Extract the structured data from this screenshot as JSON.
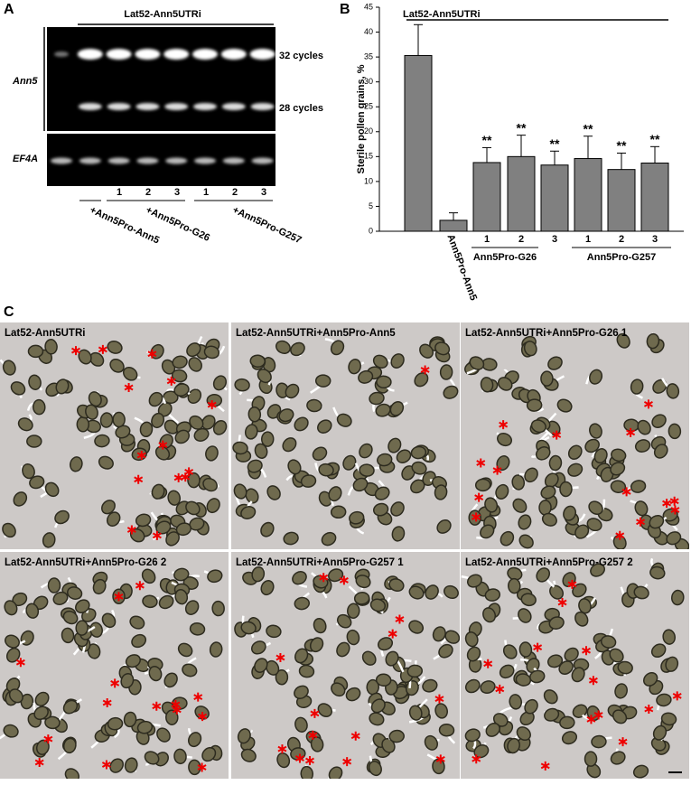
{
  "panel_labels": [
    "A",
    "B",
    "C"
  ],
  "gel": {
    "title": "Lat52-Ann5UTRi",
    "row_labels": [
      "Ann5",
      "EF4A"
    ],
    "cycle_labels": [
      "32 cycles",
      "28 cycles"
    ],
    "lane_numbers": [
      "1",
      "2",
      "3",
      "1",
      "2",
      "3"
    ],
    "lane_groups": [
      "+Ann5Pro-Ann5",
      "+Ann5Pro-G26",
      "+Ann5Pro-G257"
    ]
  },
  "chart_data": {
    "type": "bar",
    "title": "Lat52-Ann5UTRi",
    "y_label": "Sterile pollen grains, %",
    "categories": [
      null,
      "Ann5Pro-Ann5",
      "1",
      "2",
      "3",
      "1",
      "2",
      "3"
    ],
    "group_labels": [
      "Ann5Pro-G26",
      "Ann5Pro-G257"
    ],
    "series": [
      {
        "color": "#808080",
        "values": [
          35.3,
          2.2,
          13.8,
          15.0,
          13.3,
          14.6,
          12.4,
          13.7
        ],
        "errors": [
          6.2,
          1.5,
          3.0,
          4.3,
          2.8,
          4.5,
          3.3,
          3.3
        ],
        "annotations": [
          null,
          null,
          "**",
          "**",
          "**",
          "**",
          "**",
          "**"
        ]
      }
    ],
    "ylim": [
      0,
      45
    ],
    "yticks": [
      0,
      5,
      10,
      15,
      20,
      25,
      30,
      35,
      40,
      45
    ]
  },
  "micrographs": {
    "titles": [
      "Lat52-Ann5UTRi",
      "Lat52-Ann5UTRi+Ann5Pro-Ann5",
      "Lat52-Ann5UTRi+Ann5Pro-G26 1",
      "Lat52-Ann5UTRi+Ann5Pro-G26 2",
      "Lat52-Ann5UTRi+Ann5Pro-G257 1",
      "Lat52-Ann5UTRi+Ann5Pro-G257 2"
    ]
  }
}
